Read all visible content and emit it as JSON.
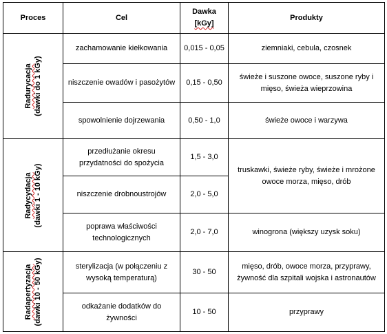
{
  "headers": {
    "proces": "Proces",
    "cel": "Cel",
    "dawka_line1": "Dawka",
    "dawka_line2": "[kGy]",
    "produkty": "Produkty"
  },
  "groups": [
    {
      "name_line1": "Radurycacja",
      "name_line2": "(dawki do 1 kGy)",
      "rows": [
        {
          "cel": "zachamowanie kiełkowania",
          "dawka": "0,015 - 0,05",
          "produkty": "ziemniaki, cebula, czosnek"
        },
        {
          "cel": "niszczenie owadów i pasożytów",
          "dawka": "0,15 - 0,50",
          "produkty": "świeże i suszone owoce, suszone ryby i mięso, świeża wieprzowina"
        },
        {
          "cel": "spowolnienie dojrzewania",
          "dawka": "0,50 - 1,0",
          "produkty": "świeże owoce i warzywa"
        }
      ]
    },
    {
      "name_line1": "Radycydacja",
      "name_line2": "(dawki 1 - 10 kGy)",
      "rows": [
        {
          "cel": "przedłużanie okresu przydatności do spożycia",
          "dawka": "1,5 - 3,0",
          "produkty": "truskawki, świeże ryby, świeże i mrożone owoce morza, mięso, drób"
        },
        {
          "cel": "niszczenie drobnoustrojów",
          "dawka": "2,0 - 5,0"
        },
        {
          "cel": "poprawa właściwości technologicznych",
          "dawka": "2,0 - 7,0",
          "produkty": "winogrona (większy uzysk soku)"
        }
      ]
    },
    {
      "name_line1": "Radapertyzacja",
      "name_line2": "(dawki 10 - 50 kGy)",
      "rows": [
        {
          "cel": "sterylizacja (w połączeniu z wysoką temperaturą)",
          "dawka": "30 - 50",
          "produkty": "mięso, drób, owoce morza, przyprawy, żywność dla szpitali wojska i astronautów"
        },
        {
          "cel": "odkażanie dodatków do żywności",
          "dawka": "10 - 50",
          "produkty": "przyprawy"
        }
      ]
    }
  ]
}
